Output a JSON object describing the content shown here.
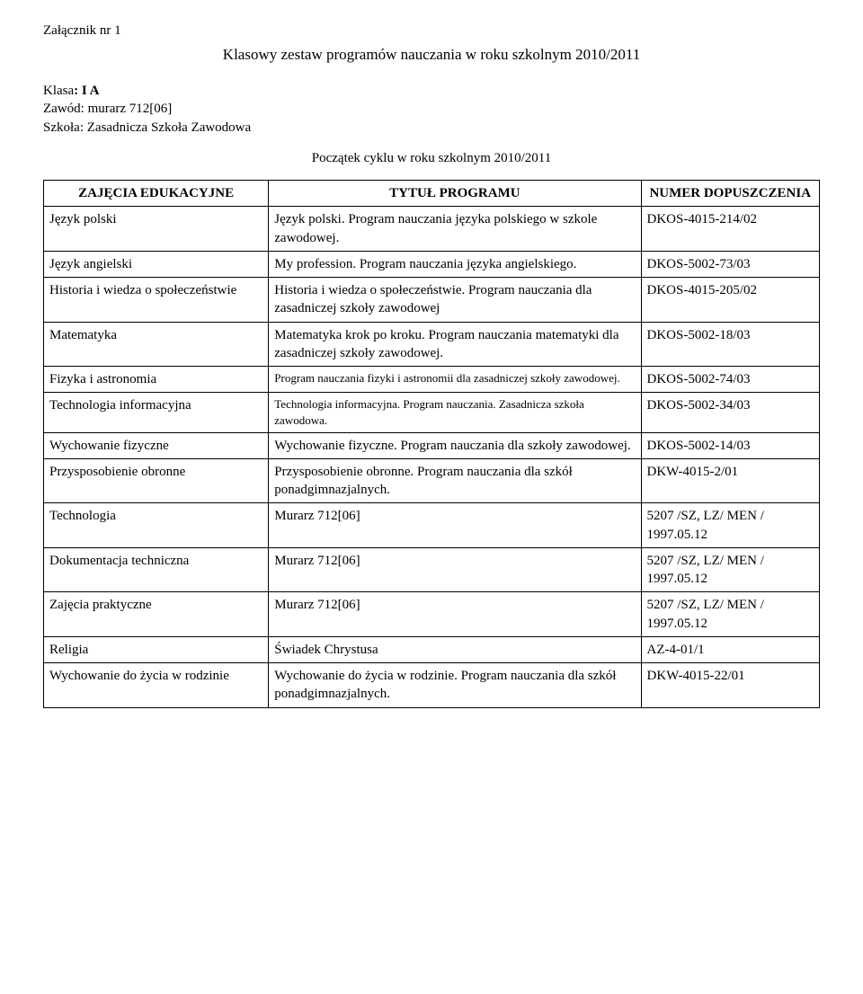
{
  "attachment": "Załącznik nr 1",
  "main_title": "Klasowy zestaw programów nauczania w roku szkolnym 2010/2011",
  "meta": {
    "klasa_label": "Klasa",
    "klasa_value": ": I A",
    "zawod_label": "Zawód: ",
    "zawod_value": "murarz 712[06]",
    "szkola_label": "Szkoła: ",
    "szkola_value": "Zasadnicza Szkoła Zawodowa"
  },
  "cycle_start": "Początek cyklu w roku szkolnym 2010/2011",
  "headers": {
    "col1": "ZAJĘCIA EDUKACYJNE",
    "col2": "TYTUŁ PROGRAMU",
    "col3": "NUMER DOPUSZCZENIA"
  },
  "rows": [
    {
      "c1": "Język polski",
      "c2": "Język polski. Program nauczania języka polskiego w szkole zawodowej.",
      "c3": "DKOS-4015-214/02",
      "small": false
    },
    {
      "c1": "Język angielski",
      "c2": "My profession. Program nauczania języka angielskiego.",
      "c3": "DKOS-5002-73/03",
      "small": false
    },
    {
      "c1": "Historia i wiedza o społeczeństwie",
      "c2": "Historia i wiedza o społeczeństwie. Program nauczania dla zasadniczej szkoły zawodowej",
      "c3": "DKOS-4015-205/02",
      "small": false
    },
    {
      "c1": "Matematyka",
      "c2": "Matematyka krok po kroku. Program nauczania matematyki dla zasadniczej szkoły zawodowej.",
      "c3": "DKOS-5002-18/03",
      "small": false
    },
    {
      "c1": "Fizyka i astronomia",
      "c2": "Program nauczania fizyki i astronomii dla zasadniczej szkoły zawodowej.",
      "c3": "DKOS-5002-74/03",
      "small": true
    },
    {
      "c1": "Technologia informacyjna",
      "c2": "Technologia informacyjna. Program nauczania. Zasadnicza szkoła zawodowa.",
      "c3": "DKOS-5002-34/03",
      "small": true
    },
    {
      "c1": "Wychowanie fizyczne",
      "c2": "Wychowanie fizyczne. Program nauczania dla szkoły zawodowej.",
      "c3": "DKOS-5002-14/03",
      "small": false
    },
    {
      "c1": "Przysposobienie obronne",
      "c2": "Przysposobienie obronne. Program nauczania dla szkół ponadgimnazjalnych.",
      "c3": "DKW-4015-2/01",
      "small": false
    },
    {
      "c1": "Technologia",
      "c2": "Murarz 712[06]",
      "c3": "5207 /SZ, LZ/ MEN / 1997.05.12",
      "small": false
    },
    {
      "c1": "Dokumentacja techniczna",
      "c2": "Murarz 712[06]",
      "c3": "5207 /SZ, LZ/ MEN / 1997.05.12",
      "small": false
    },
    {
      "c1": "Zajęcia praktyczne",
      "c2": "Murarz 712[06]",
      "c3": "5207 /SZ, LZ/ MEN / 1997.05.12",
      "small": false
    },
    {
      "c1": "Religia",
      "c2": "Świadek Chrystusa",
      "c3": "AZ-4-01/1",
      "small": false
    },
    {
      "c1": "Wychowanie do życia w rodzinie",
      "c2": "Wychowanie do życia w rodzinie. Program nauczania dla szkół ponadgimnazjalnych.",
      "c3": "DKW-4015-22/01",
      "small": false
    }
  ]
}
